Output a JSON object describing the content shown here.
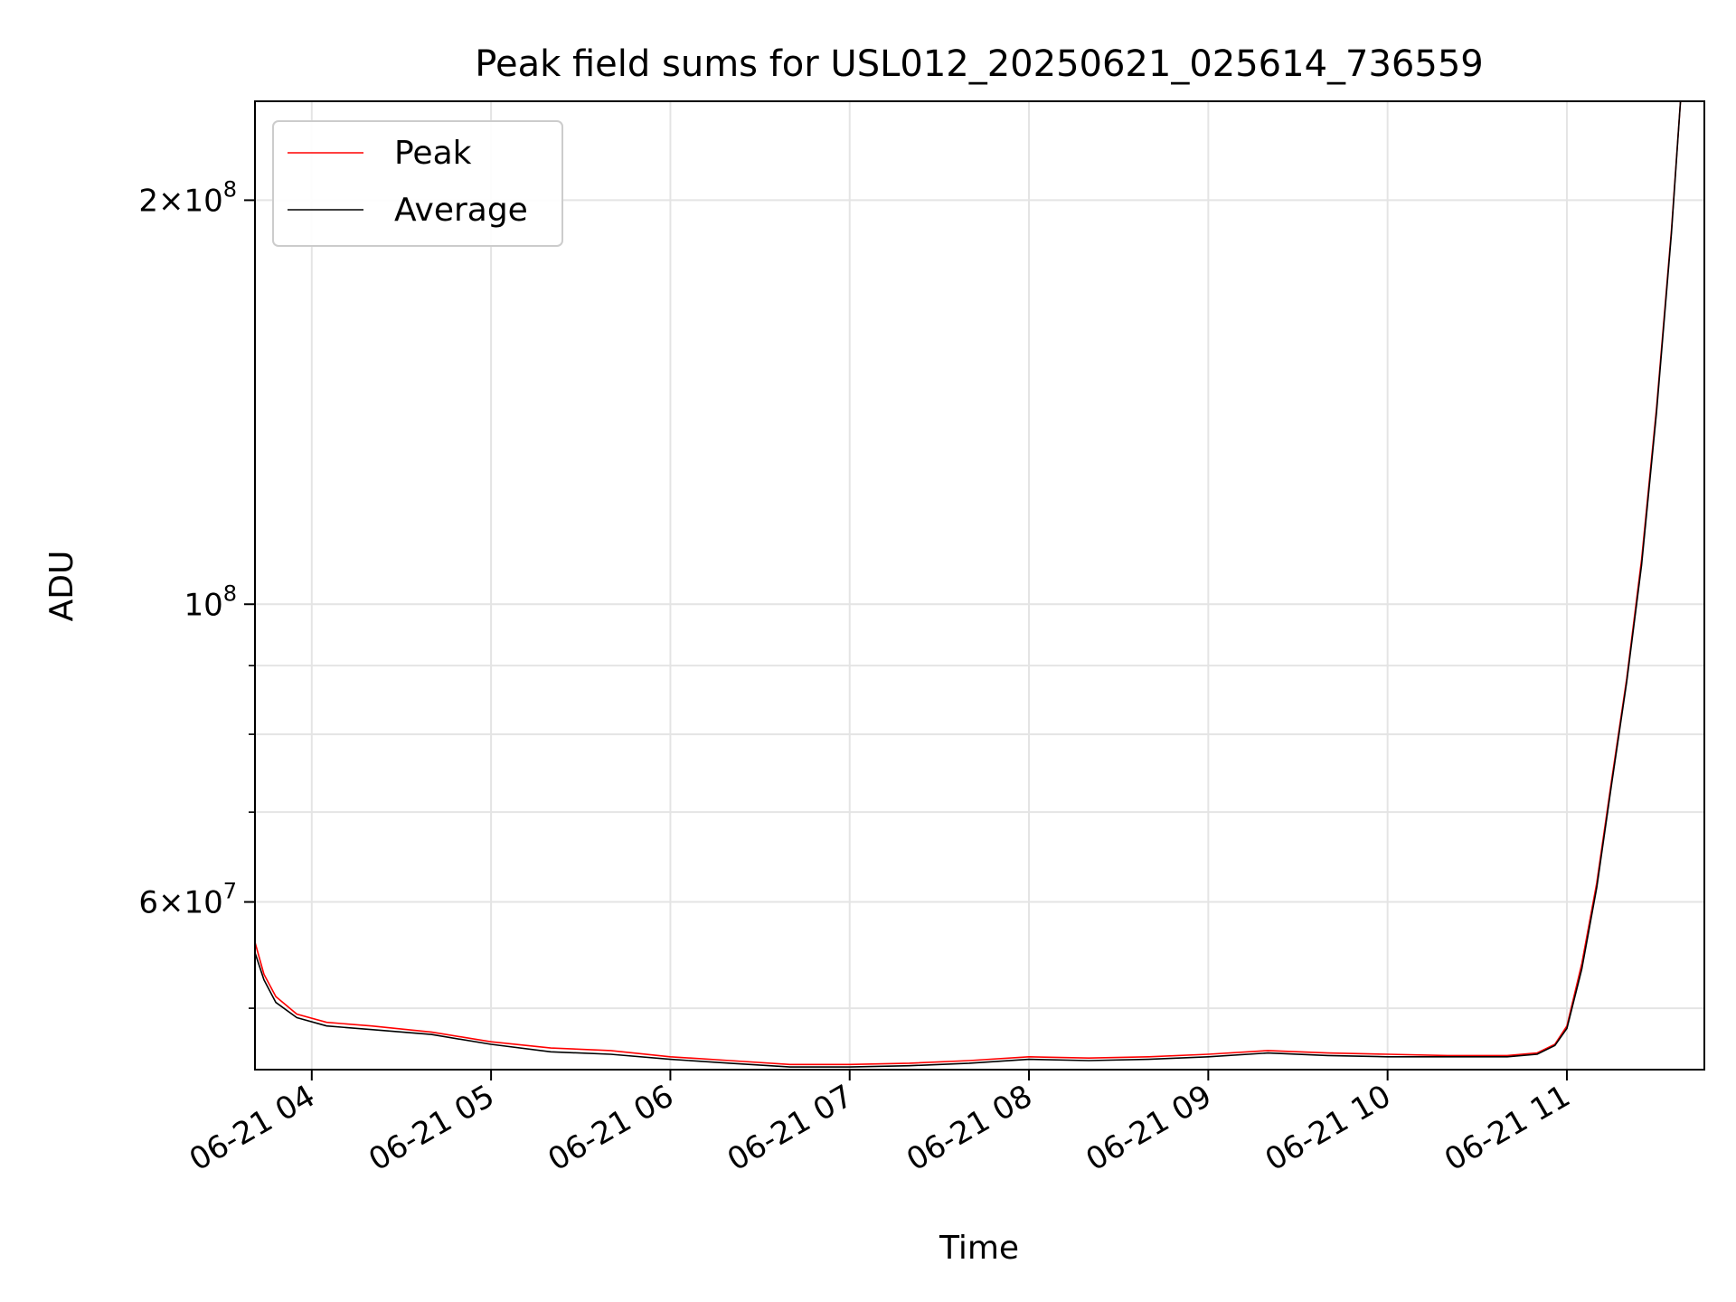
{
  "chart_data": {
    "type": "line",
    "title": "Peak field sums for USL012_20250621_025614_736559",
    "xlabel": "Time",
    "ylabel": "ADU",
    "y_scale": "log",
    "grid": true,
    "legend_position": "top-left",
    "x_range": [
      "2025-06-21T03:41",
      "2025-06-21T11:46"
    ],
    "y_range": [
      45000000,
      237000000
    ],
    "x_ticks": [
      {
        "value": "2025-06-21T04:00",
        "label": "06-21 04"
      },
      {
        "value": "2025-06-21T05:00",
        "label": "06-21 05"
      },
      {
        "value": "2025-06-21T06:00",
        "label": "06-21 06"
      },
      {
        "value": "2025-06-21T07:00",
        "label": "06-21 07"
      },
      {
        "value": "2025-06-21T08:00",
        "label": "06-21 08"
      },
      {
        "value": "2025-06-21T09:00",
        "label": "06-21 09"
      },
      {
        "value": "2025-06-21T10:00",
        "label": "06-21 10"
      },
      {
        "value": "2025-06-21T11:00",
        "label": "06-21 11"
      }
    ],
    "y_ticks": [
      {
        "value": 60000000,
        "base": "6",
        "exp": "7"
      },
      {
        "value": 100000000,
        "base": "",
        "exp": "8"
      },
      {
        "value": 200000000,
        "base": "2",
        "exp": "8"
      }
    ],
    "y_minor_ticks": [
      50000000,
      70000000,
      80000000,
      90000000
    ],
    "series": [
      {
        "name": "Peak",
        "color": "#ff0000",
        "x": [
          "2025-06-21T03:41",
          "2025-06-21T03:44",
          "2025-06-21T03:48",
          "2025-06-21T03:55",
          "2025-06-21T04:05",
          "2025-06-21T04:20",
          "2025-06-21T04:40",
          "2025-06-21T05:00",
          "2025-06-21T05:20",
          "2025-06-21T05:40",
          "2025-06-21T06:00",
          "2025-06-21T06:20",
          "2025-06-21T06:40",
          "2025-06-21T07:00",
          "2025-06-21T07:20",
          "2025-06-21T07:40",
          "2025-06-21T08:00",
          "2025-06-21T08:20",
          "2025-06-21T08:40",
          "2025-06-21T09:00",
          "2025-06-21T09:20",
          "2025-06-21T09:40",
          "2025-06-21T10:00",
          "2025-06-21T10:20",
          "2025-06-21T10:40",
          "2025-06-21T10:50",
          "2025-06-21T10:56",
          "2025-06-21T11:00",
          "2025-06-21T11:05",
          "2025-06-21T11:10",
          "2025-06-21T11:15",
          "2025-06-21T11:20",
          "2025-06-21T11:25",
          "2025-06-21T11:30",
          "2025-06-21T11:35",
          "2025-06-21T11:38"
        ],
        "y": [
          56000000,
          53000000,
          51000000,
          49500000,
          48800000,
          48500000,
          48000000,
          47200000,
          46700000,
          46500000,
          46000000,
          45700000,
          45400000,
          45400000,
          45500000,
          45700000,
          46000000,
          45900000,
          46000000,
          46200000,
          46500000,
          46300000,
          46200000,
          46100000,
          46100000,
          46300000,
          47000000,
          48500000,
          54000000,
          62000000,
          74000000,
          88000000,
          108000000,
          140000000,
          190000000,
          237000000
        ]
      },
      {
        "name": "Average",
        "color": "#000000",
        "x": [
          "2025-06-21T03:41",
          "2025-06-21T03:44",
          "2025-06-21T03:48",
          "2025-06-21T03:55",
          "2025-06-21T04:05",
          "2025-06-21T04:20",
          "2025-06-21T04:40",
          "2025-06-21T05:00",
          "2025-06-21T05:20",
          "2025-06-21T05:40",
          "2025-06-21T06:00",
          "2025-06-21T06:20",
          "2025-06-21T06:40",
          "2025-06-21T07:00",
          "2025-06-21T07:20",
          "2025-06-21T07:40",
          "2025-06-21T08:00",
          "2025-06-21T08:20",
          "2025-06-21T08:40",
          "2025-06-21T09:00",
          "2025-06-21T09:20",
          "2025-06-21T09:40",
          "2025-06-21T10:00",
          "2025-06-21T10:20",
          "2025-06-21T10:40",
          "2025-06-21T10:50",
          "2025-06-21T10:56",
          "2025-06-21T11:00",
          "2025-06-21T11:05",
          "2025-06-21T11:10",
          "2025-06-21T11:15",
          "2025-06-21T11:20",
          "2025-06-21T11:25",
          "2025-06-21T11:30",
          "2025-06-21T11:35",
          "2025-06-21T11:38"
        ],
        "y": [
          55000000,
          52500000,
          50500000,
          49200000,
          48500000,
          48200000,
          47800000,
          47000000,
          46400000,
          46200000,
          45800000,
          45500000,
          45200000,
          45200000,
          45300000,
          45500000,
          45800000,
          45700000,
          45800000,
          46000000,
          46300000,
          46100000,
          46000000,
          46000000,
          46000000,
          46200000,
          46900000,
          48300000,
          53500000,
          61500000,
          73500000,
          87500000,
          107000000,
          139000000,
          189000000,
          237000000
        ]
      }
    ]
  }
}
